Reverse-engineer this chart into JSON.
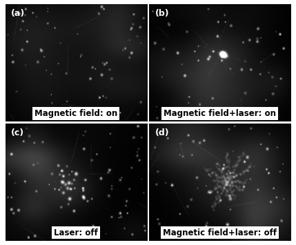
{
  "panels": [
    {
      "label": "(a)",
      "caption": "Magnetic field: on",
      "row": 0,
      "col": 0
    },
    {
      "label": "(b)",
      "caption": "Magnetic field+laser: on",
      "row": 0,
      "col": 1
    },
    {
      "label": "(c)",
      "caption": "Laser: off",
      "row": 1,
      "col": 0
    },
    {
      "label": "(d)",
      "caption": "Magnetic field+laser: off",
      "row": 1,
      "col": 1
    }
  ],
  "bg_color": "#000000",
  "text_color": "#000000",
  "box_color": "#ffffff",
  "label_color": "#ffffff",
  "figure_bg": "#ffffff",
  "caption_fontsize": 8.5,
  "label_fontsize": 9,
  "seeds": [
    10,
    20,
    30,
    40
  ],
  "n_dots": [
    70,
    60,
    75,
    55
  ]
}
